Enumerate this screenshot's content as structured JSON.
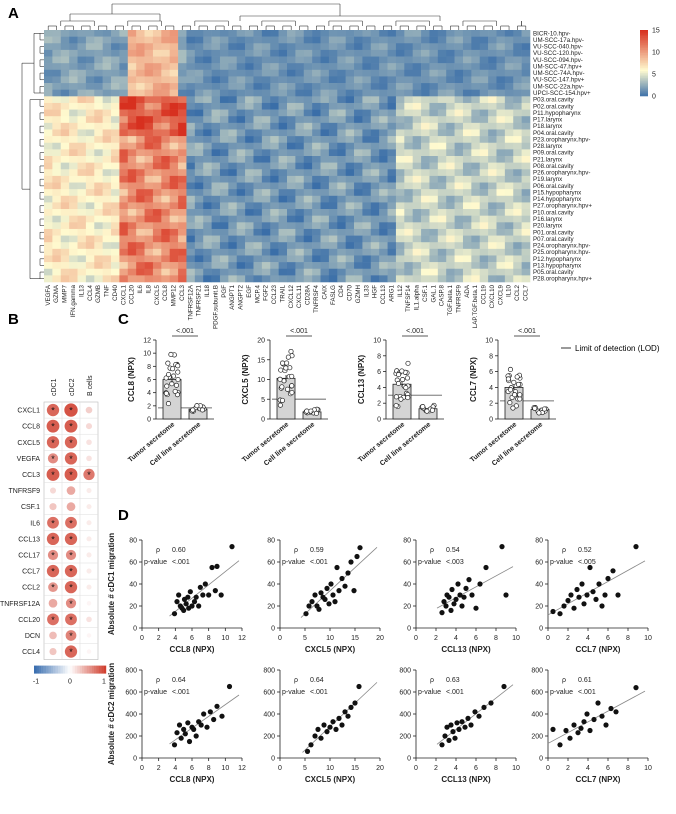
{
  "panels": {
    "a": "A",
    "b": "B",
    "c": "C",
    "d": "D"
  },
  "colors": {
    "heat_low": "#3a6ea8",
    "heat_mid": "#fffbd0",
    "heat_high": "#d7301f",
    "bar_fill": "#d4d4d4",
    "lod_line": "#9a9a9a",
    "bubble_pos": "#d04030",
    "bubble_neg": "#3b6fb0"
  },
  "heatmap": {
    "type": "heatmap",
    "colorbar_ticks": [
      "15",
      "10",
      "5",
      "0"
    ],
    "colorbar_range": [
      0,
      15
    ],
    "rows": [
      "BICR-10.hpv-",
      "UM-SCC-17a.hpv-",
      "VU-SCC-040.hpv-",
      "VU-SCC-120.hpv-",
      "VU-SCC-094.hpv-",
      "UM-SCC-47.hpv+",
      "UM-SCC-74A.hpv-",
      "VU-SCC-147.hpv+",
      "UM-SCC-22a.hpv-",
      "UPCI-SCC-154.hpv+",
      "P03.oral.cavity",
      "P02.oral.cavity",
      "P11.hypopharynx",
      "P17.larynx",
      "P18.larynx",
      "P04.oral.cavity",
      "P23.oropharynx.hpv-",
      "P28.larynx",
      "P09.oral.cavity",
      "P21.larynx",
      "P08.oral.cavity",
      "P26.oropharynx.hpv-",
      "P19.larynx",
      "P06.oral.cavity",
      "P15.hypopharynx",
      "P14.hypopharynx",
      "P27.oropharynx.hpv+",
      "P10.oral.cavity",
      "P16.larynx",
      "P20.larynx",
      "P01.oral.cavity",
      "P07.oral.cavity",
      "P24.oropharynx.hpv-",
      "P25.oropharynx.hpv-",
      "P12.hypopharynx",
      "P13.hypopharynx",
      "P05.oral.cavity",
      "P28.oropharynx.hpv+"
    ],
    "columns": [
      "VEGFA",
      "GZMA",
      "MMP7",
      "IFN.gamma",
      "IL13",
      "CCL4",
      "GZMB",
      "TNF",
      "CD40",
      "CXCL1",
      "CCL20",
      "IL6",
      "IL8",
      "CXCL5",
      "CCL8",
      "MMP12",
      "CCL3",
      "TNFRSF12A",
      "TNFRSF21",
      "IL18",
      "PDGF.subunit.B",
      "PGF",
      "ANGPT1",
      "ANGPT2",
      "EGF",
      "MCP.4",
      "FGF2",
      "CCL23",
      "TRAIL",
      "CXCL12",
      "CXCL11",
      "CD28A",
      "TNFRSF4",
      "CAIX",
      "FASLG",
      "CD4",
      "CD70",
      "GZMH",
      "IL33",
      "HGF",
      "CCL13",
      "ARG1",
      "IL12",
      "TNFSF14",
      "IL1.alpha",
      "CSF.1",
      "GAL.1",
      "CASP.8",
      "TGF.beta.1",
      "TNFRSF9",
      "ADA",
      "LAP.TGF.beta.1",
      "CCL19",
      "CXCL10",
      "CXCL9",
      "IL10",
      "CCL2",
      "CCL7"
    ]
  },
  "bubble": {
    "columns": [
      "cDC1",
      "cDC2",
      "B cells"
    ],
    "rows": [
      "CXCL1",
      "CCL8",
      "CXCL5",
      "VEGFA",
      "CCL3",
      "TNFRSF9",
      "CSF.1",
      "IL6",
      "CCL13",
      "CCL17",
      "CCL7",
      "CCL2",
      "TNFRSF12A",
      "CCL20",
      "DCN",
      "CCL4"
    ],
    "legend_ticks": [
      "-1",
      "0",
      "1"
    ],
    "values": [
      [
        0.8,
        0.9,
        0.25
      ],
      [
        0.85,
        0.85,
        0.2
      ],
      [
        0.8,
        0.8,
        0.15
      ],
      [
        0.6,
        0.8,
        0.15
      ],
      [
        0.85,
        0.85,
        0.7
      ],
      [
        0.2,
        0.45,
        0.1
      ],
      [
        0.3,
        0.45,
        0.1
      ],
      [
        0.75,
        0.75,
        0.1
      ],
      [
        0.8,
        0.8,
        0.1
      ],
      [
        0.6,
        0.6,
        0.1
      ],
      [
        0.8,
        0.8,
        0.1
      ],
      [
        0.55,
        0.8,
        0.1
      ],
      [
        0.45,
        0.6,
        0.05
      ],
      [
        0.75,
        0.75,
        0.15
      ],
      [
        0.35,
        0.65,
        0.05
      ],
      [
        0.3,
        0.8,
        0.05
      ]
    ],
    "star_mark": "*"
  },
  "chart_data": [
    {
      "type": "bar",
      "id": "C1",
      "ylabel": "CCL8 (NPX)",
      "categories": [
        "Tumor secretome",
        "Cell line secretome"
      ],
      "values": [
        6.0,
        1.5
      ],
      "ylim": [
        0,
        12
      ],
      "yticks": [
        "0",
        "2",
        "4",
        "6",
        "8",
        "10",
        "12"
      ],
      "lod": 1.7,
      "pval": "<.001"
    },
    {
      "type": "bar",
      "id": "C2",
      "ylabel": "CXCL5 (NPX)",
      "categories": [
        "Tumor secretome",
        "Cell line secretome"
      ],
      "values": [
        10.3,
        1.8
      ],
      "ylim": [
        0,
        20
      ],
      "yticks": [
        "0",
        "5",
        "10",
        "15",
        "20"
      ],
      "lod": 5.0,
      "pval": "<.001"
    },
    {
      "type": "bar",
      "id": "C3",
      "ylabel": "CCL13 (NPX)",
      "categories": [
        "Tumor secretome",
        "Cell line secretome"
      ],
      "values": [
        4.4,
        1.3
      ],
      "ylim": [
        0,
        10
      ],
      "yticks": [
        "0",
        "2",
        "4",
        "6",
        "8",
        "10"
      ],
      "lod": 3.0,
      "pval": "<.001"
    },
    {
      "type": "bar",
      "id": "C4",
      "ylabel": "CCL7 (NPX)",
      "categories": [
        "Tumor secretome",
        "Cell line secretome"
      ],
      "values": [
        4.0,
        1.2
      ],
      "ylim": [
        0,
        10
      ],
      "yticks": [
        "0",
        "2",
        "4",
        "6",
        "8",
        "10"
      ],
      "lod": 2.3,
      "pval": "<.001"
    },
    {
      "type": "scatter",
      "id": "D1",
      "xlabel": "CCL8 (NPX)",
      "ylabel": "Absolute # cDC1 migration",
      "xlim": [
        0,
        12
      ],
      "ylim": [
        0,
        80
      ],
      "xticks": [
        "0",
        "2",
        "4",
        "6",
        "8",
        "10",
        "12"
      ],
      "yticks": [
        "0",
        "20",
        "40",
        "60",
        "80"
      ],
      "rho": "0.60",
      "pval": ".001",
      "x": [
        3.9,
        4.2,
        4.4,
        4.6,
        4.8,
        5.0,
        5.1,
        5.3,
        5.5,
        5.6,
        5.8,
        6.0,
        6.3,
        6.5,
        6.8,
        7.0,
        7.3,
        7.6,
        8.0,
        8.4,
        8.8,
        9.0,
        9.5,
        10.8
      ],
      "y": [
        13,
        24,
        30,
        20,
        18,
        16,
        26,
        22,
        28,
        18,
        33,
        20,
        24,
        28,
        20,
        37,
        30,
        40,
        30,
        55,
        34,
        56,
        30,
        74
      ]
    },
    {
      "type": "scatter",
      "id": "D2",
      "xlabel": "CXCL5 (NPX)",
      "ylabel": "",
      "xlim": [
        0,
        20
      ],
      "ylim": [
        0,
        80
      ],
      "xticks": [
        "0",
        "5",
        "10",
        "15",
        "20"
      ],
      "yticks": [
        "0",
        "20",
        "40",
        "60",
        "80"
      ],
      "rho": "0.59",
      "pval": ".001",
      "x": [
        5.2,
        5.8,
        6.4,
        7.0,
        7.4,
        7.8,
        8.2,
        8.6,
        9.0,
        9.4,
        9.8,
        10.2,
        10.6,
        11.0,
        11.4,
        11.8,
        12.4,
        13.0,
        13.6,
        14.2,
        14.8,
        15.4,
        16.0
      ],
      "y": [
        13,
        20,
        24,
        30,
        20,
        17,
        32,
        28,
        26,
        36,
        22,
        40,
        30,
        24,
        55,
        34,
        45,
        38,
        50,
        60,
        34,
        65,
        73
      ]
    },
    {
      "type": "scatter",
      "id": "D3",
      "xlabel": "CCL13 (NPX)",
      "ylabel": "",
      "xlim": [
        0,
        10
      ],
      "ylim": [
        0,
        80
      ],
      "xticks": [
        "0",
        "2",
        "4",
        "6",
        "8",
        "10"
      ],
      "yticks": [
        "0",
        "20",
        "40",
        "60",
        "80"
      ],
      "rho": "0.54",
      "pval": ".003",
      "x": [
        2.6,
        2.8,
        3.0,
        3.1,
        3.3,
        3.5,
        3.6,
        3.8,
        4.0,
        4.2,
        4.4,
        4.6,
        4.8,
        5.0,
        5.3,
        5.6,
        6.0,
        6.4,
        7.0,
        8.6,
        9.0
      ],
      "y": [
        14,
        24,
        20,
        30,
        28,
        16,
        35,
        22,
        26,
        40,
        30,
        20,
        28,
        36,
        44,
        30,
        18,
        40,
        55,
        74,
        30
      ]
    },
    {
      "type": "scatter",
      "id": "D4",
      "xlabel": "CCL7 (NPX)",
      "ylabel": "",
      "xlim": [
        0,
        10
      ],
      "ylim": [
        0,
        80
      ],
      "xticks": [
        "0",
        "2",
        "4",
        "6",
        "8",
        "10"
      ],
      "yticks": [
        "0",
        "20",
        "40",
        "60",
        "80"
      ],
      "rho": "0.52",
      "pval": ".005",
      "x": [
        0.5,
        1.2,
        1.6,
        2.0,
        2.3,
        2.6,
        2.9,
        3.1,
        3.4,
        3.6,
        3.9,
        4.2,
        4.5,
        4.8,
        5.1,
        5.4,
        5.7,
        6.0,
        6.5,
        7.0,
        8.8
      ],
      "y": [
        15,
        13,
        20,
        25,
        30,
        18,
        35,
        28,
        40,
        22,
        30,
        55,
        33,
        26,
        40,
        20,
        30,
        45,
        52,
        30,
        74
      ]
    },
    {
      "type": "scatter",
      "id": "D5",
      "xlabel": "CCL8 (NPX)",
      "ylabel": "Absolute # cDC2 migration",
      "xlim": [
        0,
        12
      ],
      "ylim": [
        0,
        800
      ],
      "xticks": [
        "0",
        "2",
        "4",
        "6",
        "8",
        "10",
        "12"
      ],
      "yticks": [
        "0",
        "200",
        "400",
        "600",
        "800"
      ],
      "rho": "0.64",
      "pval": ".001",
      "x": [
        3.9,
        4.2,
        4.5,
        4.7,
        5.0,
        5.2,
        5.5,
        5.7,
        6.0,
        6.2,
        6.5,
        6.8,
        7.1,
        7.4,
        7.8,
        8.2,
        8.6,
        9.0,
        9.6,
        10.5
      ],
      "y": [
        120,
        230,
        300,
        180,
        260,
        220,
        320,
        150,
        280,
        260,
        200,
        330,
        300,
        400,
        280,
        420,
        350,
        470,
        380,
        650
      ]
    },
    {
      "type": "scatter",
      "id": "D6",
      "xlabel": "CXCL5 (NPX)",
      "ylabel": "",
      "xlim": [
        0,
        20
      ],
      "ylim": [
        0,
        800
      ],
      "xticks": [
        "0",
        "5",
        "10",
        "15",
        "20"
      ],
      "yticks": [
        "0",
        "200",
        "400",
        "600",
        "800"
      ],
      "rho": "0.64",
      "pval": ".001",
      "x": [
        5.5,
        6.2,
        7.0,
        7.6,
        8.2,
        8.8,
        9.4,
        10.0,
        10.6,
        11.2,
        11.8,
        12.4,
        13.0,
        13.6,
        14.2,
        15.0,
        15.8
      ],
      "y": [
        60,
        120,
        200,
        260,
        180,
        300,
        240,
        280,
        330,
        260,
        360,
        300,
        420,
        380,
        460,
        500,
        650
      ]
    },
    {
      "type": "scatter",
      "id": "D7",
      "xlabel": "CCL13 (NPX)",
      "ylabel": "",
      "xlim": [
        0,
        10
      ],
      "ylim": [
        0,
        800
      ],
      "xticks": [
        "0",
        "2",
        "4",
        "6",
        "8",
        "10"
      ],
      "yticks": [
        "0",
        "200",
        "400",
        "600",
        "800"
      ],
      "rho": "0.63",
      "pval": ".001",
      "x": [
        2.6,
        2.9,
        3.1,
        3.3,
        3.5,
        3.7,
        3.9,
        4.1,
        4.3,
        4.6,
        4.9,
        5.2,
        5.5,
        5.9,
        6.3,
        6.8,
        7.5,
        8.8
      ],
      "y": [
        120,
        200,
        280,
        160,
        300,
        240,
        180,
        320,
        260,
        330,
        280,
        360,
        300,
        420,
        380,
        460,
        500,
        650
      ]
    },
    {
      "type": "scatter",
      "id": "D8",
      "xlabel": "CCL7 (NPX)",
      "ylabel": "",
      "xlim": [
        0,
        10
      ],
      "ylim": [
        0,
        800
      ],
      "xticks": [
        "0",
        "2",
        "4",
        "6",
        "8",
        "10"
      ],
      "yticks": [
        "0",
        "200",
        "400",
        "600",
        "800"
      ],
      "rho": "0.61",
      "pval": ".001",
      "x": [
        0.5,
        1.2,
        1.8,
        2.2,
        2.6,
        3.0,
        3.3,
        3.6,
        3.9,
        4.2,
        4.6,
        5.0,
        5.4,
        5.8,
        6.3,
        6.8,
        8.8
      ],
      "y": [
        260,
        120,
        250,
        180,
        300,
        230,
        270,
        330,
        400,
        250,
        350,
        500,
        380,
        300,
        450,
        420,
        640
      ]
    }
  ],
  "legend": {
    "lod_label": "Limit of detection (LOD)"
  },
  "stat_labels": {
    "rho": "ρ",
    "pvalue": "p-value"
  }
}
